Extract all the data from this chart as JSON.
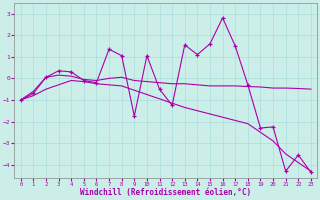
{
  "title": "",
  "xlabel": "Windchill (Refroidissement éolien,°C)",
  "background_color": "#cceee8",
  "line_color": "#aa00aa",
  "xlim_min": -0.5,
  "xlim_max": 23.5,
  "ylim_min": -4.6,
  "ylim_max": 3.5,
  "yticks": [
    -4,
    -3,
    -2,
    -1,
    0,
    1,
    2,
    3
  ],
  "xticks": [
    0,
    1,
    2,
    3,
    4,
    5,
    6,
    7,
    8,
    9,
    10,
    11,
    12,
    13,
    14,
    15,
    16,
    17,
    18,
    19,
    20,
    21,
    22,
    23
  ],
  "grid_color": "#aadddd",
  "series_jagged_x": [
    0,
    1,
    2,
    3,
    4,
    5,
    6,
    7,
    8,
    9,
    10,
    11,
    12,
    13,
    14,
    15,
    16,
    17,
    18,
    19,
    20,
    21,
    22,
    23
  ],
  "series_jagged_y": [
    -1.0,
    -0.7,
    0.05,
    0.35,
    0.3,
    -0.1,
    -0.2,
    1.35,
    1.05,
    -1.75,
    1.05,
    -0.5,
    -1.25,
    1.55,
    1.1,
    1.6,
    2.8,
    1.5,
    -0.3,
    -2.3,
    -2.25,
    -4.3,
    -3.55,
    -4.35
  ],
  "series_flat_x": [
    0,
    1,
    2,
    3,
    4,
    5,
    6,
    7,
    8,
    9,
    10,
    11,
    12,
    13,
    14,
    15,
    16,
    17,
    18,
    19,
    20,
    21,
    22,
    23
  ],
  "series_flat_y": [
    -1.0,
    -0.6,
    0.05,
    0.15,
    0.1,
    -0.05,
    -0.1,
    -0.0,
    0.05,
    -0.1,
    -0.15,
    -0.2,
    -0.25,
    -0.25,
    -0.3,
    -0.35,
    -0.35,
    -0.35,
    -0.38,
    -0.4,
    -0.45,
    -0.45,
    -0.47,
    -0.5
  ],
  "series_diagonal_x": [
    0,
    1,
    2,
    3,
    4,
    5,
    6,
    7,
    8,
    9,
    10,
    11,
    12,
    13,
    14,
    15,
    16,
    17,
    18,
    19,
    20,
    21,
    22,
    23
  ],
  "series_diagonal_y": [
    -1.0,
    -0.8,
    -0.5,
    -0.3,
    -0.1,
    -0.15,
    -0.25,
    -0.3,
    -0.35,
    -0.55,
    -0.75,
    -0.95,
    -1.15,
    -1.35,
    -1.5,
    -1.65,
    -1.8,
    -1.95,
    -2.1,
    -2.5,
    -2.9,
    -3.5,
    -3.9,
    -4.3
  ]
}
